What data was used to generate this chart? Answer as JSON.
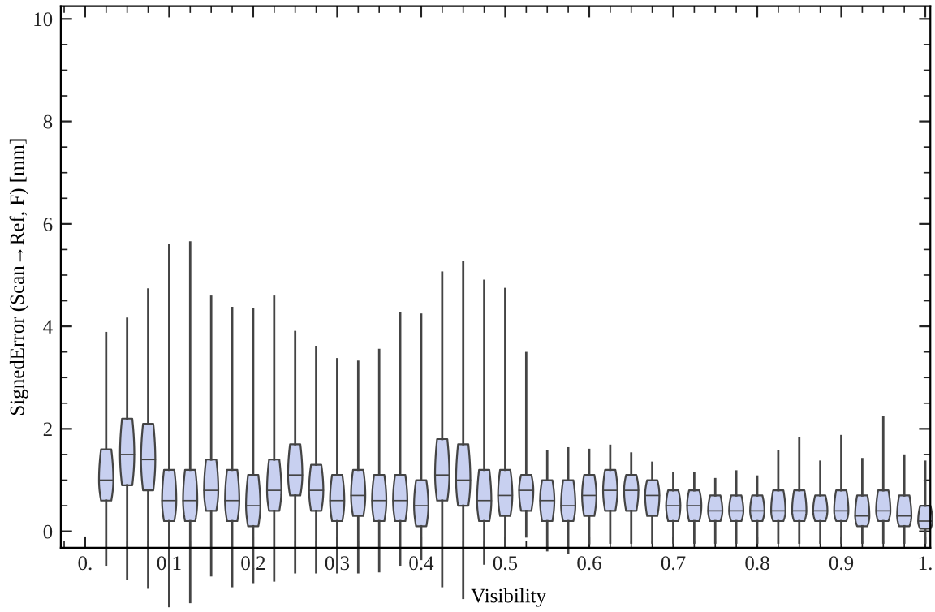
{
  "chart_data": {
    "type": "box",
    "xlabel": "Visibility",
    "ylabel": "SignedError (Scan→Ref, F) [mm]",
    "x": [
      0.025,
      0.05,
      0.075,
      0.1,
      0.125,
      0.15,
      0.175,
      0.2,
      0.225,
      0.25,
      0.275,
      0.3,
      0.325,
      0.35,
      0.375,
      0.4,
      0.425,
      0.45,
      0.475,
      0.5,
      0.525,
      0.55,
      0.575,
      0.6,
      0.625,
      0.65,
      0.675,
      0.7,
      0.725,
      0.75,
      0.775,
      0.8,
      0.825,
      0.85,
      0.875,
      0.9,
      0.925,
      0.95,
      0.975,
      1.0
    ],
    "series": [
      {
        "color": "#c8d0f0",
        "boxes": [
          {
            "low": -0.65,
            "q1": 0.6,
            "median": 1.0,
            "q3": 1.6,
            "high": 3.87
          },
          {
            "low": -0.92,
            "q1": 0.9,
            "median": 1.5,
            "q3": 2.2,
            "high": 4.15
          },
          {
            "low": -1.1,
            "q1": 0.8,
            "median": 1.4,
            "q3": 2.1,
            "high": 4.72
          },
          {
            "low": -1.46,
            "q1": 0.2,
            "median": 0.6,
            "q3": 1.2,
            "high": 5.59
          },
          {
            "low": -1.38,
            "q1": 0.2,
            "median": 0.6,
            "q3": 1.2,
            "high": 5.64
          },
          {
            "low": -0.86,
            "q1": 0.4,
            "median": 0.8,
            "q3": 1.4,
            "high": 4.58
          },
          {
            "low": -1.07,
            "q1": 0.2,
            "median": 0.6,
            "q3": 1.2,
            "high": 4.36
          },
          {
            "low": -0.99,
            "q1": 0.1,
            "median": 0.5,
            "q3": 1.1,
            "high": 4.33
          },
          {
            "low": -0.96,
            "q1": 0.4,
            "median": 0.8,
            "q3": 1.4,
            "high": 4.58
          },
          {
            "low": -0.8,
            "q1": 0.7,
            "median": 1.1,
            "q3": 1.7,
            "high": 3.89
          },
          {
            "low": -0.8,
            "q1": 0.4,
            "median": 0.8,
            "q3": 1.3,
            "high": 3.6
          },
          {
            "low": -0.8,
            "q1": 0.2,
            "median": 0.6,
            "q3": 1.1,
            "high": 3.36
          },
          {
            "low": -0.8,
            "q1": 0.3,
            "median": 0.7,
            "q3": 1.2,
            "high": 3.31
          },
          {
            "low": -0.78,
            "q1": 0.2,
            "median": 0.6,
            "q3": 1.1,
            "high": 3.54
          },
          {
            "low": -0.65,
            "q1": 0.2,
            "median": 0.6,
            "q3": 1.1,
            "high": 4.25
          },
          {
            "low": -0.54,
            "q1": 0.1,
            "median": 0.5,
            "q3": 1.0,
            "high": 4.23
          },
          {
            "low": -1.07,
            "q1": 0.6,
            "median": 1.1,
            "q3": 1.8,
            "high": 5.05
          },
          {
            "low": -1.3,
            "q1": 0.5,
            "median": 1.0,
            "q3": 1.7,
            "high": 5.25
          },
          {
            "low": -0.63,
            "q1": 0.2,
            "median": 0.6,
            "q3": 1.2,
            "high": 4.89
          },
          {
            "low": -0.31,
            "q1": 0.3,
            "median": 0.7,
            "q3": 1.2,
            "high": 4.73
          },
          {
            "low": -0.1,
            "q1": 0.4,
            "median": 0.8,
            "q3": 1.1,
            "high": 3.48
          },
          {
            "low": -0.37,
            "q1": 0.2,
            "median": 0.6,
            "q3": 1.0,
            "high": 1.57
          },
          {
            "low": -0.42,
            "q1": 0.2,
            "median": 0.5,
            "q3": 1.0,
            "high": 1.62
          },
          {
            "low": -0.23,
            "q1": 0.3,
            "median": 0.7,
            "q3": 1.1,
            "high": 1.59
          },
          {
            "low": -0.22,
            "q1": 0.4,
            "median": 0.8,
            "q3": 1.2,
            "high": 1.67
          },
          {
            "low": -0.22,
            "q1": 0.4,
            "median": 0.8,
            "q3": 1.1,
            "high": 1.52
          },
          {
            "low": -0.22,
            "q1": 0.3,
            "median": 0.7,
            "q3": 1.0,
            "high": 1.34
          },
          {
            "low": -0.22,
            "q1": 0.2,
            "median": 0.5,
            "q3": 0.8,
            "high": 1.13
          },
          {
            "low": -0.22,
            "q1": 0.2,
            "median": 0.5,
            "q3": 0.8,
            "high": 1.13
          },
          {
            "low": -0.22,
            "q1": 0.2,
            "median": 0.4,
            "q3": 0.7,
            "high": 1.02
          },
          {
            "low": -0.22,
            "q1": 0.2,
            "median": 0.4,
            "q3": 0.7,
            "high": 1.17
          },
          {
            "low": -0.22,
            "q1": 0.2,
            "median": 0.4,
            "q3": 0.7,
            "high": 1.07
          },
          {
            "low": -0.22,
            "q1": 0.2,
            "median": 0.4,
            "q3": 0.8,
            "high": 1.57
          },
          {
            "low": -0.22,
            "q1": 0.2,
            "median": 0.4,
            "q3": 0.8,
            "high": 1.81
          },
          {
            "low": -0.22,
            "q1": 0.2,
            "median": 0.4,
            "q3": 0.7,
            "high": 1.36
          },
          {
            "low": -0.22,
            "q1": 0.2,
            "median": 0.4,
            "q3": 0.8,
            "high": 1.86
          },
          {
            "low": -0.22,
            "q1": 0.1,
            "median": 0.3,
            "q3": 0.7,
            "high": 1.41
          },
          {
            "low": -0.22,
            "q1": 0.2,
            "median": 0.4,
            "q3": 0.8,
            "high": 2.23
          },
          {
            "low": -0.22,
            "q1": 0.1,
            "median": 0.3,
            "q3": 0.7,
            "high": 1.48
          },
          {
            "low": -0.22,
            "q1": 0.05,
            "median": 0.2,
            "q3": 0.5,
            "high": 1.36
          }
        ]
      }
    ],
    "xlim": [
      -0.029,
      1.006
    ],
    "ylim": [
      -0.32,
      10.25
    ],
    "xticks": [
      {
        "value": 0,
        "label": "0."
      },
      0.1,
      0.2,
      0.3,
      0.4,
      0.5,
      0.6,
      0.7,
      0.8,
      0.9,
      {
        "value": 1,
        "label": "1."
      }
    ],
    "yticks": [
      0,
      2,
      4,
      6,
      8,
      10
    ],
    "grid": false,
    "legend": false
  }
}
